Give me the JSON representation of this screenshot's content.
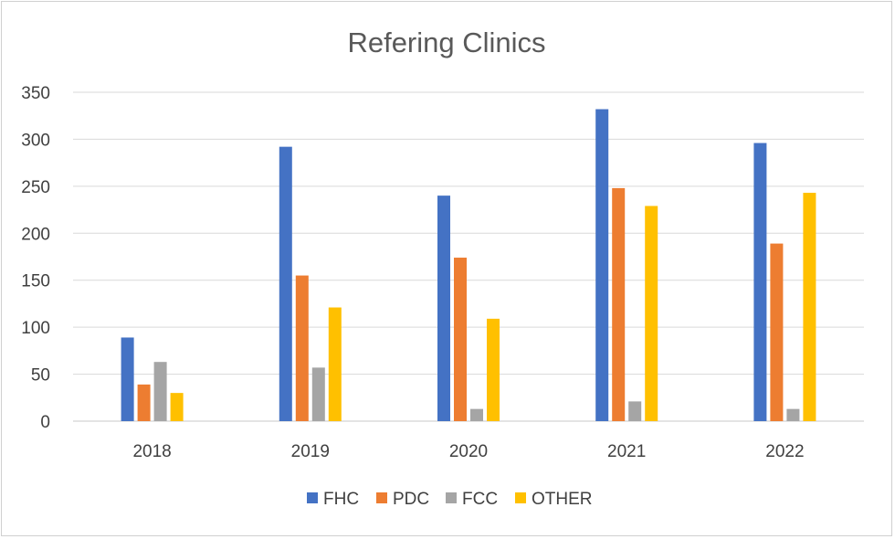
{
  "chart_data": {
    "type": "bar",
    "title": "Refering Clinics",
    "xlabel": "",
    "ylabel": "",
    "categories": [
      "2018",
      "2019",
      "2020",
      "2021",
      "2022"
    ],
    "ylim": [
      0,
      350
    ],
    "yticks": [
      0,
      50,
      100,
      150,
      200,
      250,
      300,
      350
    ],
    "grid": true,
    "legend_position": "bottom",
    "series": [
      {
        "name": "FHC",
        "color": "#4472C4",
        "values": [
          89,
          292,
          240,
          332,
          296
        ]
      },
      {
        "name": "PDC",
        "color": "#ED7D31",
        "values": [
          39,
          155,
          174,
          248,
          189
        ]
      },
      {
        "name": "FCC",
        "color": "#A5A5A5",
        "values": [
          63,
          57,
          13,
          21,
          13
        ]
      },
      {
        "name": "OTHER",
        "color": "#FFC000",
        "values": [
          30,
          121,
          109,
          229,
          243
        ]
      }
    ]
  }
}
